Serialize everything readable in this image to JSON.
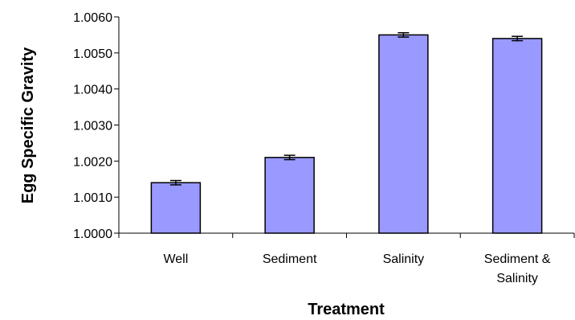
{
  "chart_data": {
    "type": "bar",
    "title": "",
    "xlabel": "Treatment",
    "ylabel": "Egg Specific Gravity",
    "categories": [
      [
        "Well"
      ],
      [
        "Sediment"
      ],
      [
        "Salinity"
      ],
      [
        "Sediment &",
        "Salinity"
      ]
    ],
    "values": [
      1.0014,
      1.0021,
      1.0055,
      1.0054
    ],
    "error": [
      6e-05,
      6e-05,
      6e-05,
      6e-05
    ],
    "ylim": [
      1.0,
      1.006
    ],
    "yticks": [
      "1.0000",
      "1.0010",
      "1.0020",
      "1.0030",
      "1.0040",
      "1.0050",
      "1.0060"
    ],
    "grid": false,
    "legend": "none",
    "bar_color": "#9999ff"
  }
}
